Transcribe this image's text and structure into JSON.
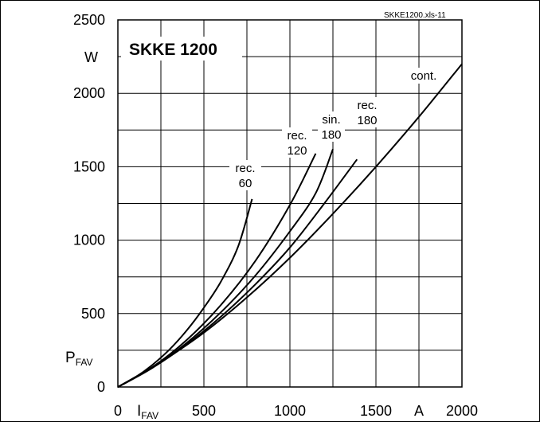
{
  "chart_data": {
    "type": "line",
    "title": "SKKE 1200",
    "file_label": "SKKE1200.xls-11",
    "x_axis": {
      "symbol": "I",
      "subscript": "FAV",
      "unit": "A",
      "range": [
        0,
        2000
      ],
      "ticks": [
        0,
        500,
        1000,
        1500,
        2000
      ],
      "tick_labels": [
        "0",
        "500",
        "1000",
        "1500",
        "2000"
      ],
      "minor_step": 250
    },
    "y_axis": {
      "symbol": "P",
      "subscript": "FAV",
      "unit": "W",
      "range": [
        0,
        2500
      ],
      "ticks": [
        0,
        500,
        1000,
        1500,
        2000,
        2500
      ],
      "tick_labels": [
        "0",
        "500",
        "1000",
        "1500",
        "2000",
        "2500"
      ],
      "minor_step": 250
    },
    "grid": true,
    "series": [
      {
        "name": "rec. 60",
        "label_lines": [
          "rec.",
          "60"
        ],
        "x": [
          0,
          100,
          200,
          300,
          400,
          500,
          600,
          700,
          780
        ],
        "y": [
          0,
          65,
          150,
          255,
          385,
          540,
          720,
          960,
          1280
        ]
      },
      {
        "name": "rec. 120",
        "label_lines": [
          "rec.",
          "120"
        ],
        "x": [
          0,
          200,
          400,
          600,
          800,
          1000,
          1150
        ],
        "y": [
          0,
          135,
          320,
          560,
          860,
          1240,
          1590
        ]
      },
      {
        "name": "sin. 180",
        "label_lines": [
          "sin.",
          "180"
        ],
        "x": [
          0,
          200,
          400,
          600,
          800,
          1000,
          1150,
          1250
        ],
        "y": [
          0,
          130,
          300,
          510,
          760,
          1060,
          1320,
          1620
        ]
      },
      {
        "name": "rec. 180",
        "label_lines": [
          "rec.",
          "180"
        ],
        "x": [
          0,
          200,
          400,
          600,
          800,
          1000,
          1200,
          1390
        ],
        "y": [
          0,
          130,
          290,
          480,
          700,
          950,
          1250,
          1550
        ]
      },
      {
        "name": "cont.",
        "label_lines": [
          "cont."
        ],
        "x": [
          0,
          250,
          500,
          750,
          1000,
          1250,
          1500,
          1750,
          2000
        ],
        "y": [
          0,
          170,
          370,
          610,
          880,
          1180,
          1500,
          1840,
          2200
        ]
      }
    ]
  }
}
